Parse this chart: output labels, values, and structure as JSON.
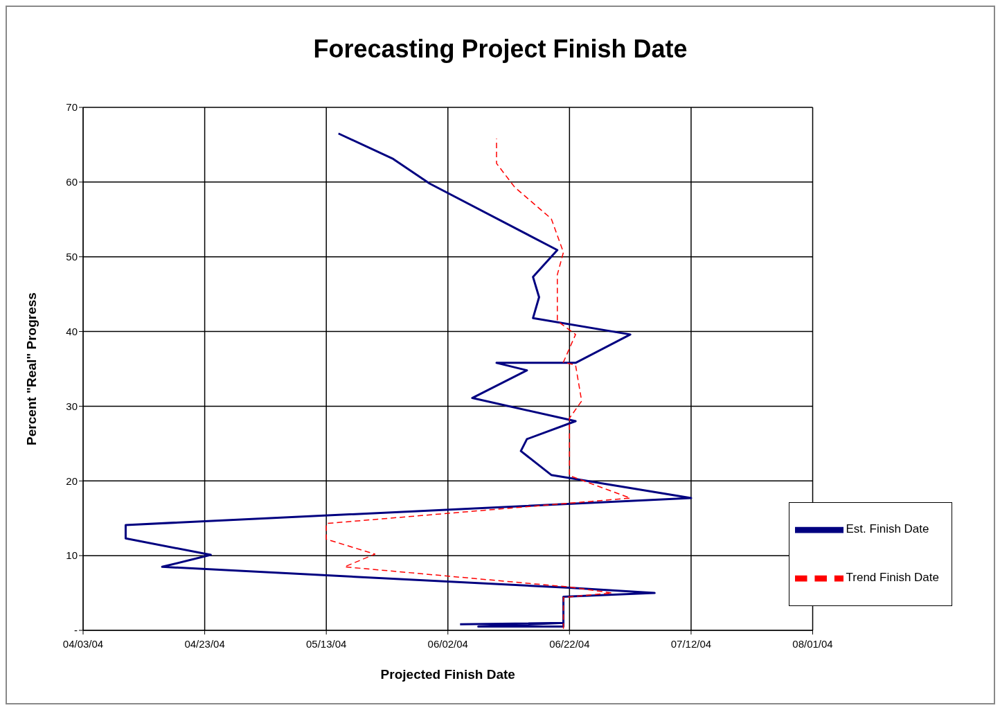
{
  "chart_data": {
    "type": "line",
    "title": "Forecasting Project Finish Date",
    "xlabel": "Projected Finish Date",
    "ylabel": "Percent \"Real\" Progress",
    "xlim": [
      "2004-04-03",
      "2004-08-01"
    ],
    "xticks": [
      {
        "value": "2004-04-03",
        "label": "04/03/04"
      },
      {
        "value": "2004-04-23",
        "label": "04/23/04"
      },
      {
        "value": "2004-05-13",
        "label": "05/13/04"
      },
      {
        "value": "2004-06-02",
        "label": "06/02/04"
      },
      {
        "value": "2004-06-22",
        "label": "06/22/04"
      },
      {
        "value": "2004-07-12",
        "label": "07/12/04"
      },
      {
        "value": "2004-08-01",
        "label": "08/01/04"
      }
    ],
    "ylim": [
      0,
      70
    ],
    "yticks": [
      {
        "value": 0,
        "label": "-"
      },
      10,
      20,
      30,
      40,
      50,
      60,
      70
    ],
    "grid": true,
    "legend": "right",
    "marker": "none",
    "series": [
      {
        "name": "Est. Finish Date",
        "color": "#000080",
        "line_style": "solid",
        "x": [
          "2004-06-04",
          "2004-06-21",
          "2004-06-07",
          "2004-06-21",
          "2004-06-21",
          "2004-07-06",
          "2004-06-22",
          "2004-04-16",
          "2004-04-24",
          "2004-04-10",
          "2004-04-10",
          "2004-07-12",
          "2004-06-19",
          "2004-06-14",
          "2004-06-15",
          "2004-06-23",
          "2004-06-06",
          "2004-06-15",
          "2004-06-10",
          "2004-06-23",
          "2004-07-02",
          "2004-06-16",
          "2004-06-17",
          "2004-06-16",
          "2004-06-20",
          "2004-05-30",
          "2004-05-24",
          "2004-05-15"
        ],
        "values": [
          0.8,
          1.0,
          0.5,
          0.5,
          4.5,
          5.0,
          5.7,
          8.5,
          10.1,
          12.3,
          14.1,
          17.7,
          20.8,
          24,
          25.6,
          28,
          31.1,
          34.8,
          35.8,
          35.8,
          39.6,
          41.8,
          44.6,
          47.3,
          50.9,
          59.8,
          63.1,
          66.5
        ]
      },
      {
        "name": "Trend Finish Date",
        "color": "#ff0000",
        "line_style": "dashed",
        "x": [
          "2004-06-21",
          "2004-06-21",
          "2004-06-29",
          "2004-06-22",
          "2004-05-16",
          "2004-05-21",
          "2004-05-13",
          "2004-05-13",
          "2004-07-02",
          "2004-06-22",
          "2004-06-22",
          "2004-06-24",
          "2004-06-23",
          "2004-06-21",
          "2004-06-23",
          "2004-06-20",
          "2004-06-20",
          "2004-06-21",
          "2004-06-19",
          "2004-06-13",
          "2004-06-10",
          "2004-06-10"
        ],
        "values": [
          0.2,
          4.4,
          5.0,
          5.8,
          8.5,
          10.2,
          12.2,
          14.3,
          17.7,
          20.7,
          28.4,
          30.7,
          35.5,
          35.9,
          39.6,
          41.4,
          47.6,
          50.6,
          55.1,
          59.3,
          62.5,
          65.8
        ]
      }
    ]
  }
}
